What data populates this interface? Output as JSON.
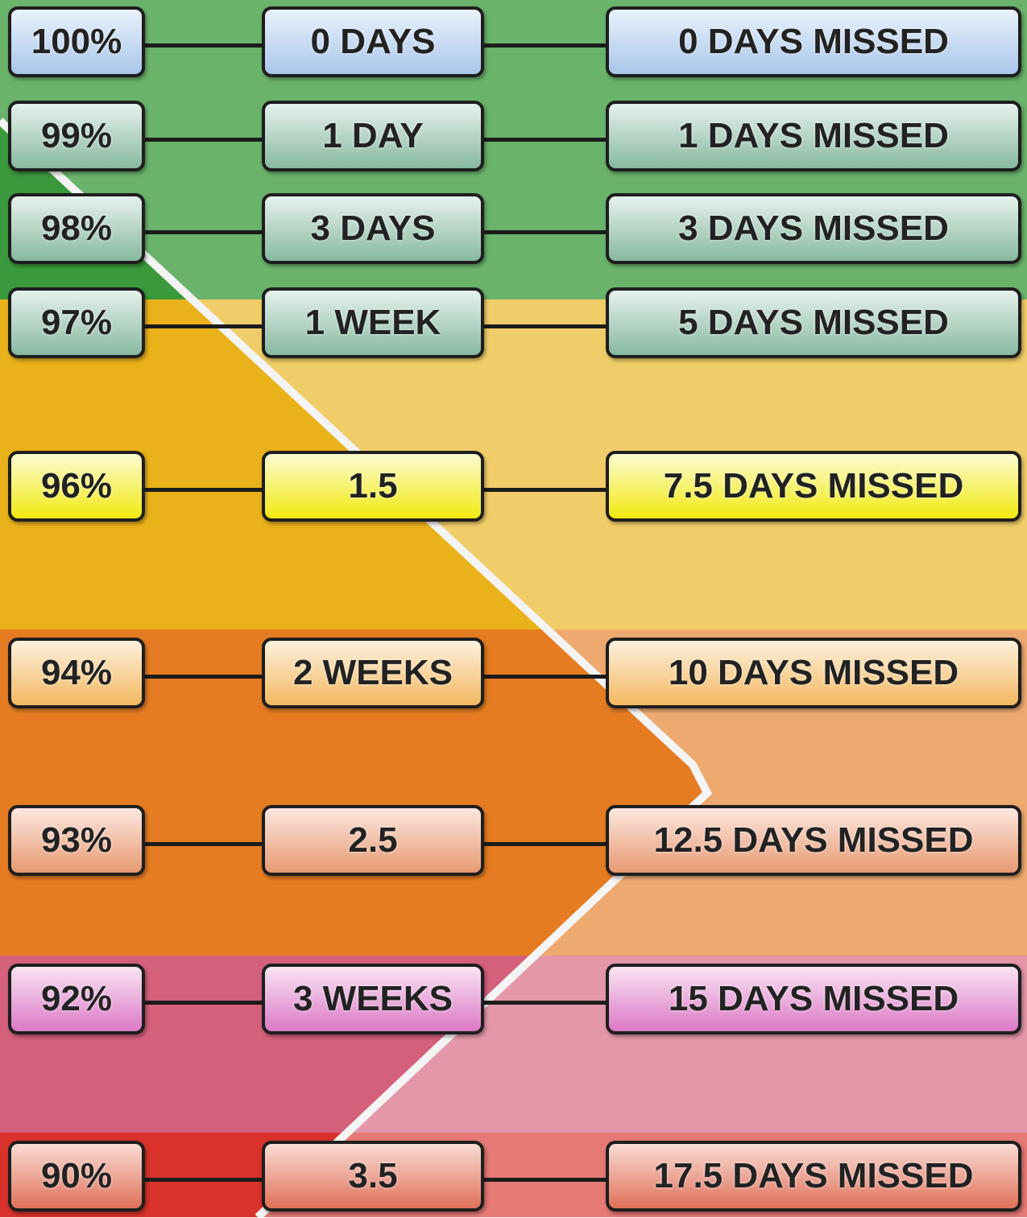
{
  "rows": [
    {
      "percent": "100%",
      "duration": "0 DAYS",
      "missed": "0 DAYS MISSED"
    },
    {
      "percent": "99%",
      "duration": "1 DAY",
      "missed": "1 DAYS MISSED"
    },
    {
      "percent": "98%",
      "duration": "3 DAYS",
      "missed": "3 DAYS MISSED"
    },
    {
      "percent": "97%",
      "duration": "1 WEEK",
      "missed": "5 DAYS MISSED"
    },
    {
      "percent": "96%",
      "duration": "1.5",
      "missed": "7.5 DAYS MISSED"
    },
    {
      "percent": "94%",
      "duration": "2 WEEKS",
      "missed": "10 DAYS MISSED"
    },
    {
      "percent": "93%",
      "duration": "2.5",
      "missed": "12.5 DAYS MISSED"
    },
    {
      "percent": "92%",
      "duration": "3 WEEKS",
      "missed": "15 DAYS MISSED"
    },
    {
      "percent": "90%",
      "duration": "3.5",
      "missed": "17.5 DAYS MISSED"
    }
  ]
}
